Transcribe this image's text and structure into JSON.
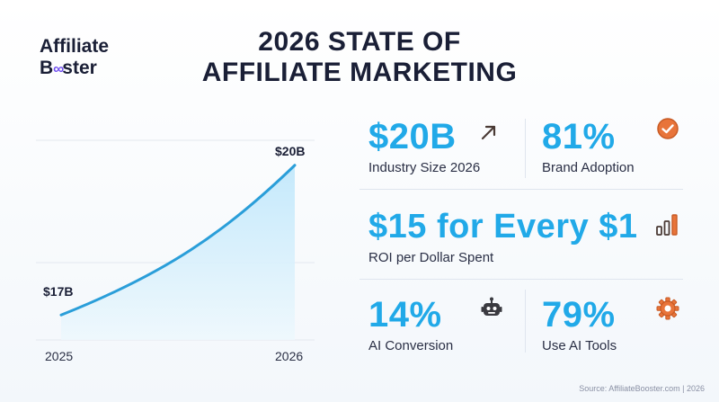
{
  "logo": {
    "line1": "Affiliate",
    "line2_b": "B",
    "line2_oo": "∞",
    "line2_rest": "ster"
  },
  "title": {
    "line1": "2026 STATE OF",
    "line2": "AFFILIATE MARKETING"
  },
  "chart_data": {
    "type": "area",
    "x": [
      "2025",
      "2026"
    ],
    "series": [
      {
        "values": [
          17,
          20
        ]
      }
    ],
    "value_labels": [
      "$17B",
      "$20B"
    ],
    "ylim": [
      16.5,
      20.5
    ],
    "grid": true,
    "colors": {
      "line": "#2a9ed9",
      "fill_top": "#bfe7fb",
      "fill_bottom": "#eef8fd"
    }
  },
  "stats": {
    "industry": {
      "value": "$20B",
      "caption": "Industry Size 2026",
      "icon": "arrow-up-right-icon"
    },
    "adoption": {
      "value": "81%",
      "caption": "Brand Adoption",
      "icon": "check-circle-icon"
    },
    "roi": {
      "value": "$15 for Every $1",
      "caption": "ROI per Dollar Spent",
      "icon": "bar-chart-icon"
    },
    "ai_conversion": {
      "value": "14%",
      "caption": "AI Conversion",
      "icon": "robot-icon"
    },
    "ai_tools": {
      "value": "79%",
      "caption": "Use AI Tools",
      "icon": "gear-icon"
    }
  },
  "footer": "Source: AffiliateBooster.com | 2026",
  "colors": {
    "accent": "#21a9e8",
    "icon": "#e8743a",
    "text": "#1a1f36"
  }
}
